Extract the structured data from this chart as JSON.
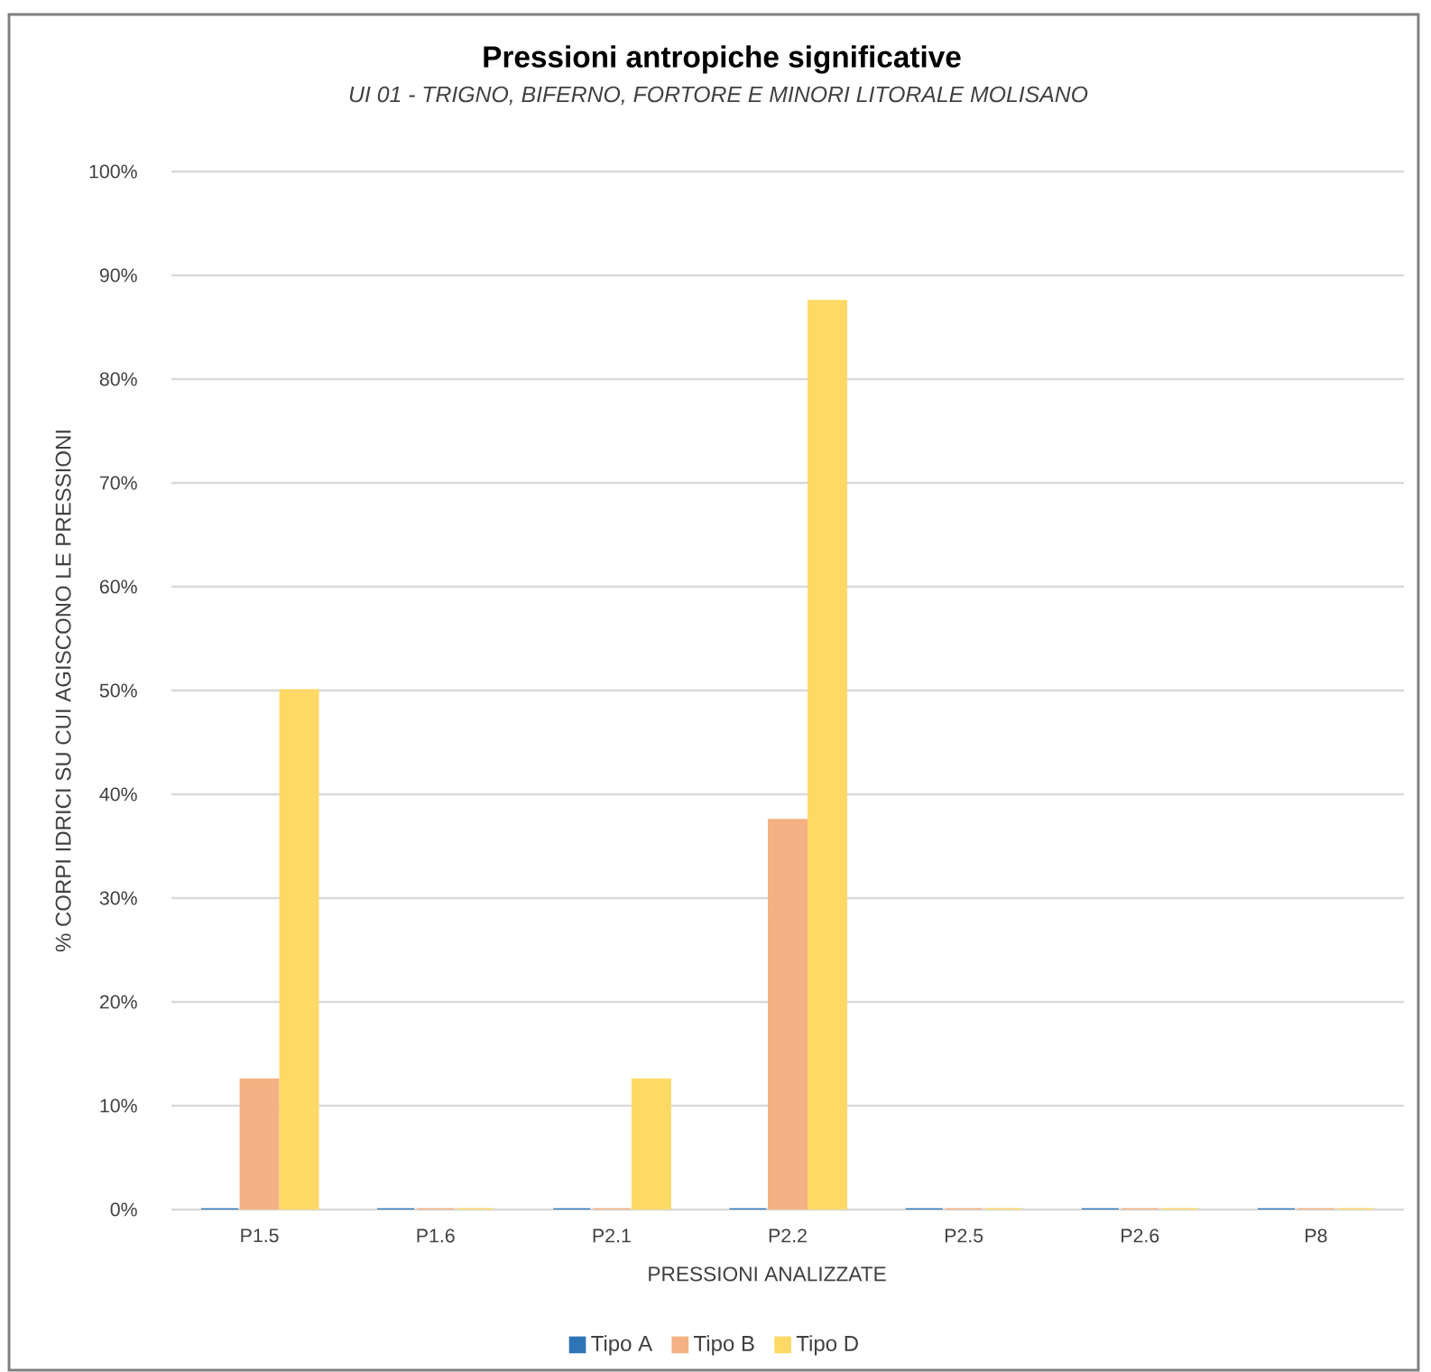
{
  "chart_data": {
    "type": "bar",
    "title": "Pressioni antropiche significative",
    "subtitle": "*UI 01 - TRIGNO, BIFERNO, FORTORE E MINORI LITORALE MOLISANO*",
    "xlabel": "PRESSIONI ANALIZZATE",
    "ylabel": "% CORPI IDRICI SU CUI AGISCONO LE PRESSIONI",
    "categories": [
      "P1.5",
      "P1.6",
      "P2.1",
      "P2.2",
      "P2.5",
      "P2.6",
      "P8"
    ],
    "series": [
      {
        "name": "Tipo A",
        "color": "#2e75b6",
        "values": [
          0,
          0,
          0,
          0,
          0,
          0,
          0
        ]
      },
      {
        "name": "Tipo B",
        "color": "#f4b183",
        "values": [
          12.5,
          0,
          0,
          37.5,
          0,
          0,
          0
        ]
      },
      {
        "name": "Tipo D",
        "color": "#ffd966",
        "values": [
          50,
          0,
          12.5,
          87.5,
          0,
          0,
          0
        ]
      }
    ],
    "ylim": [
      0,
      100
    ],
    "yticks": [
      {
        "value": 0,
        "label": "0%"
      },
      {
        "value": 10,
        "label": "10%"
      },
      {
        "value": 20,
        "label": "20%"
      },
      {
        "value": 30,
        "label": "30%"
      },
      {
        "value": 40,
        "label": "40%"
      },
      {
        "value": 50,
        "label": "50%"
      },
      {
        "value": 60,
        "label": "60%"
      },
      {
        "value": 70,
        "label": "70%"
      },
      {
        "value": 80,
        "label": "80%"
      },
      {
        "value": 90,
        "label": "90%"
      },
      {
        "value": 100,
        "label": "100%"
      }
    ],
    "grid": "y",
    "legend": "bottom"
  }
}
